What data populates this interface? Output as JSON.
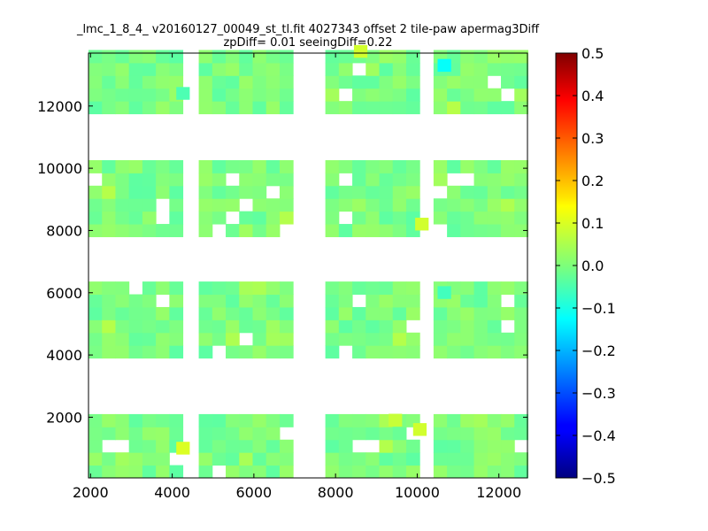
{
  "chart_data": {
    "type": "heatmap",
    "title": "_lmc_1_8_4_ v20160127_00049_st_tl.fit 4027343 offset 2 tile-paw apermag3Diff",
    "subtitle": "zpDiff= 0.01 seeingDiff=0.22",
    "xlabel": "",
    "ylabel": "",
    "xlim": [
      1950,
      12700
    ],
    "ylim": [
      50,
      13700
    ],
    "x_ticks": [
      "2000",
      "4000",
      "6000",
      "8000",
      "10000",
      "12000"
    ],
    "y_ticks": [
      "2000",
      "4000",
      "6000",
      "8000",
      "10000",
      "12000"
    ],
    "x_tick_values": [
      2000,
      4000,
      6000,
      8000,
      10000,
      12000
    ],
    "y_tick_values": [
      2000,
      4000,
      6000,
      8000,
      10000,
      12000
    ],
    "colorbar": {
      "colormap": "jet",
      "range": [
        -0.5,
        0.5
      ],
      "ticks": [
        "0.5",
        "0.4",
        "0.3",
        "0.2",
        "0.1",
        "0.0",
        "−0.1",
        "−0.2",
        "−0.3",
        "−0.4",
        "−0.5"
      ],
      "tick_values": [
        0.5,
        0.4,
        0.3,
        0.2,
        0.1,
        0.0,
        -0.1,
        -0.2,
        -0.3,
        -0.4,
        -0.5
      ]
    },
    "grid": false,
    "cell_size": [
      330,
      410
    ],
    "columns_x": [
      1950,
      4650,
      7750,
      10400
    ],
    "rows_y": [
      50,
      3900,
      7800,
      11750
    ],
    "columns_n": [
      7,
      7,
      7,
      7
    ],
    "rows_n": [
      5,
      6,
      6,
      5
    ],
    "anomalies": [
      {
        "x": 10500,
        "y": 13100,
        "value": -0.12
      },
      {
        "x": 4100,
        "y": 12200,
        "value": -0.05
      },
      {
        "x": 9950,
        "y": 8000,
        "value": 0.08
      },
      {
        "x": 4100,
        "y": 800,
        "value": 0.09
      },
      {
        "x": 9900,
        "y": 1400,
        "value": 0.08
      },
      {
        "x": 9300,
        "y": 1700,
        "value": 0.07
      },
      {
        "x": 8450,
        "y": 13550,
        "value": 0.08
      },
      {
        "x": 10500,
        "y": 5800,
        "value": -0.06
      }
    ]
  }
}
